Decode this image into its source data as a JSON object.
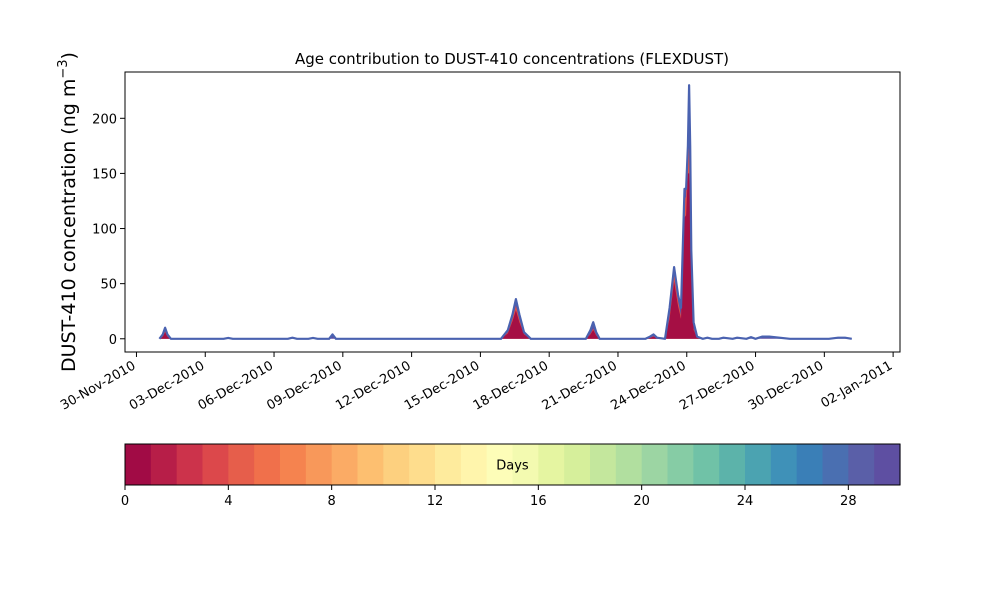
{
  "chart_data": {
    "type": "area",
    "title": "Age contribution to DUST-410 concentrations (FLEXDUST)",
    "ylabel_main": "DUST-410 concentration (ng m",
    "ylabel_sup": "−3",
    "ylabel_close": ")",
    "xlabel": "",
    "x_start": "30-Nov-2010",
    "x_end": "02-Jan-2011",
    "xlim_days": [
      -0.5,
      33.3
    ],
    "ylim": [
      -12,
      242
    ],
    "yticks": [
      0,
      50,
      100,
      150,
      200
    ],
    "ytick_labels": [
      "0",
      "50",
      "100",
      "150",
      "200"
    ],
    "xticks_days": [
      0,
      3,
      6,
      9,
      12,
      15,
      18,
      21,
      24,
      27,
      30,
      33
    ],
    "xtick_labels": [
      "30-Nov-2010",
      "03-Dec-2010",
      "06-Dec-2010",
      "09-Dec-2010",
      "12-Dec-2010",
      "15-Dec-2010",
      "18-Dec-2010",
      "21-Dec-2010",
      "24-Dec-2010",
      "27-Dec-2010",
      "30-Dec-2010",
      "02-Jan-2011"
    ],
    "series_total": {
      "x": [
        1,
        1.15,
        1.25,
        1.35,
        1.5,
        3.8,
        4.0,
        4.2,
        6.6,
        6.8,
        7.0,
        7.5,
        7.7,
        7.9,
        8.4,
        8.55,
        8.7,
        15.9,
        16.2,
        16.4,
        16.55,
        16.7,
        16.9,
        17.2,
        19.6,
        19.8,
        19.92,
        20.05,
        20.2,
        22.2,
        22.4,
        22.55,
        22.7,
        23.05,
        23.25,
        23.45,
        23.62,
        23.75,
        23.9,
        23.97,
        24.05,
        24.1,
        24.15,
        24.2,
        24.3,
        24.45,
        24.7,
        24.9,
        25.1,
        25.4,
        25.6,
        26.0,
        26.2,
        26.6,
        26.8,
        27.0,
        27.3,
        27.6,
        28.5,
        30.2,
        30.6,
        30.9,
        31.2
      ],
      "y": [
        0,
        4,
        10,
        4,
        0,
        0,
        0.8,
        0,
        0,
        1,
        0,
        0,
        0.8,
        0,
        0,
        4,
        0,
        0,
        8,
        22,
        36,
        22,
        6,
        0,
        0,
        8,
        15,
        6,
        0,
        0,
        2,
        4,
        1,
        0,
        28,
        65,
        40,
        28,
        136,
        136,
        175,
        230,
        175,
        80,
        15,
        2,
        0,
        1,
        0,
        0,
        1,
        0,
        1,
        0,
        1.5,
        0,
        2,
        2,
        0,
        0,
        1,
        1,
        0
      ]
    },
    "series_young": {
      "x": [
        1,
        1.15,
        1.25,
        1.35,
        1.5,
        15.9,
        16.2,
        16.4,
        16.55,
        16.7,
        16.9,
        17.2,
        19.6,
        19.8,
        19.92,
        20.05,
        20.2,
        22.3,
        22.55,
        22.8,
        23.05,
        23.25,
        23.45,
        23.62,
        23.75,
        23.9,
        23.97,
        24.05,
        24.1,
        24.15,
        24.2,
        24.3,
        24.45,
        24.7
      ],
      "y": [
        0,
        2,
        6,
        2,
        0,
        0,
        5,
        16,
        26,
        15,
        4,
        0,
        0,
        4,
        8,
        3,
        0,
        0,
        2,
        0.5,
        0,
        18,
        52,
        30,
        18,
        110,
        112,
        150,
        150,
        120,
        55,
        8,
        1,
        0
      ]
    },
    "colorbar": {
      "label": "Days",
      "ticks": [
        0,
        4,
        8,
        12,
        16,
        20,
        24,
        28
      ],
      "tick_labels": [
        "0",
        "4",
        "8",
        "12",
        "16",
        "20",
        "24",
        "28"
      ],
      "range": [
        0,
        30
      ],
      "colors": [
        "#a10b45",
        "#b71e48",
        "#cc334b",
        "#dc484b",
        "#e65e4b",
        "#f0704b",
        "#f5834f",
        "#f8985a",
        "#fbab65",
        "#fdbf70",
        "#fdd07f",
        "#fedd8d",
        "#feeb9d",
        "#fff5ac",
        "#fdfdb8",
        "#f3fab0",
        "#e5f5a1",
        "#d6ef9b",
        "#c4e79d",
        "#b1df9f",
        "#9cd5a3",
        "#86cca5",
        "#70c2a7",
        "#5cb3aa",
        "#4ba3b1",
        "#3f91b8",
        "#3a7fb7",
        "#4a6fb1",
        "#5a5fa8",
        "#5e4fa2"
      ]
    },
    "colors": {
      "outline": "#4a62b0",
      "fill_old": "#5e4fa2",
      "fill_young": "#a50f44",
      "fill_mid": "#e0504a"
    }
  }
}
